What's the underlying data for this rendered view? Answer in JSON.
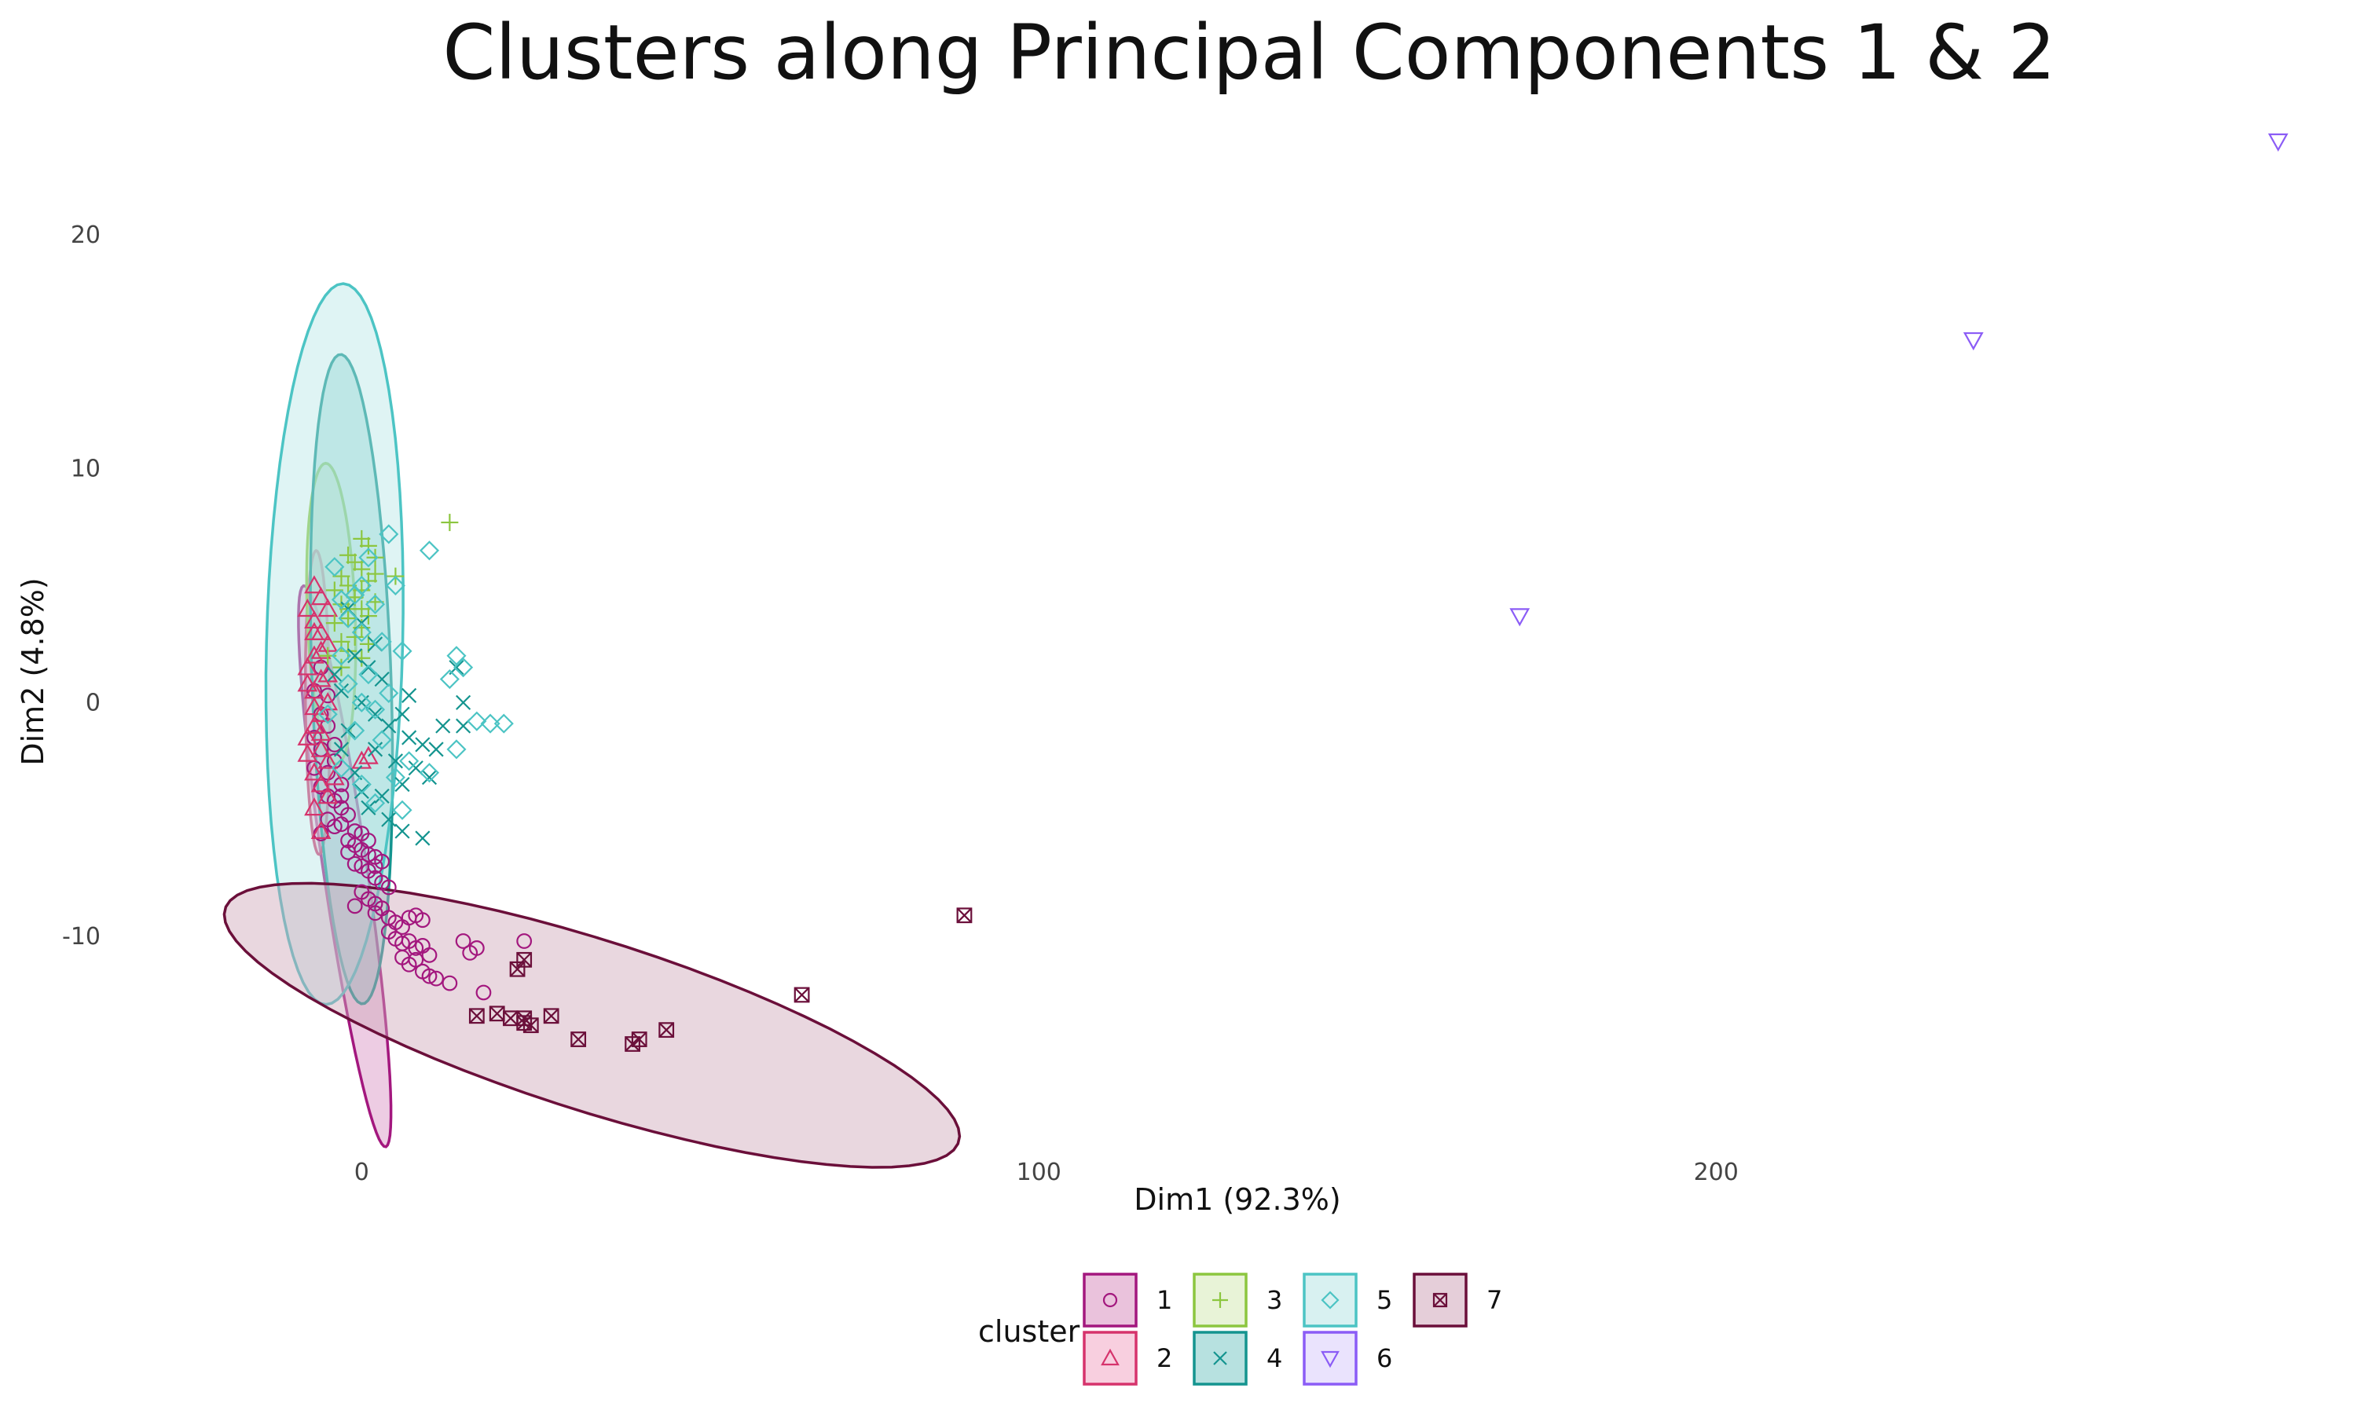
{
  "chart_data": {
    "type": "scatter",
    "title": "Clusters along Principal Components 1 & 2",
    "xlabel": "Dim1 (92.3%)",
    "ylabel": "Dim2 (4.8%)",
    "xlim": [
      -36,
      290
    ],
    "ylim": [
      -19,
      25
    ],
    "x_ticks": [
      {
        "value": 0,
        "label": "0"
      },
      {
        "value": 100,
        "label": "100"
      },
      {
        "value": 200,
        "label": "200"
      }
    ],
    "y_ticks": [
      {
        "value": 20,
        "label": "20"
      },
      {
        "value": 10,
        "label": "10"
      },
      {
        "value": 0,
        "label": "0"
      },
      {
        "value": -10,
        "label": "-10"
      }
    ],
    "grid": false,
    "legend": {
      "title": "cluster",
      "position": "bottom",
      "entries": [
        {
          "label": "1",
          "series": "1"
        },
        {
          "label": "2",
          "series": "2"
        },
        {
          "label": "3",
          "series": "3"
        },
        {
          "label": "4",
          "series": "4"
        },
        {
          "label": "5",
          "series": "5"
        },
        {
          "label": "6",
          "series": "6"
        },
        {
          "label": "7",
          "series": "7"
        }
      ]
    },
    "series": [
      {
        "name": "1",
        "color": "#a3177e",
        "fill": "#d88fc0",
        "shape": "circle",
        "ellipse": {
          "cx": -2.5,
          "cy": -7.0,
          "rx": 13.5,
          "ry": 2.9,
          "angle_deg": -62
        },
        "points": [
          [
            -4,
            -4.2
          ],
          [
            -3,
            -4.5
          ],
          [
            -2,
            -4.8
          ],
          [
            -5,
            -5
          ],
          [
            -4,
            -5.3
          ],
          [
            -3,
            -5.2
          ],
          [
            -1,
            -5.5
          ],
          [
            0,
            -5.6
          ],
          [
            -2,
            -5.9
          ],
          [
            -1,
            -6.1
          ],
          [
            0,
            -6.3
          ],
          [
            1,
            -6.5
          ],
          [
            2,
            -6.6
          ],
          [
            3,
            -6.8
          ],
          [
            -1,
            -6.9
          ],
          [
            0,
            -7.0
          ],
          [
            1,
            -7.2
          ],
          [
            2,
            -7.5
          ],
          [
            3,
            -7.7
          ],
          [
            4,
            -7.9
          ],
          [
            0,
            -8.1
          ],
          [
            1,
            -8.4
          ],
          [
            2,
            -8.6
          ],
          [
            3,
            -8.8
          ],
          [
            -1,
            -8.7
          ],
          [
            2,
            -9.0
          ],
          [
            4,
            -9.2
          ],
          [
            5,
            -9.4
          ],
          [
            6,
            -9.6
          ],
          [
            7,
            -9.2
          ],
          [
            8,
            -9.1
          ],
          [
            9,
            -9.3
          ],
          [
            4,
            -9.8
          ],
          [
            5,
            -10.1
          ],
          [
            6,
            -10.3
          ],
          [
            7,
            -10.2
          ],
          [
            8,
            -10.5
          ],
          [
            9,
            -10.4
          ],
          [
            10,
            -10.8
          ],
          [
            6,
            -10.9
          ],
          [
            7,
            -11.2
          ],
          [
            8,
            -11.0
          ],
          [
            9,
            -11.5
          ],
          [
            10,
            -11.7
          ],
          [
            11,
            -11.8
          ],
          [
            13,
            -12.0
          ],
          [
            15,
            -10.2
          ],
          [
            16,
            -10.7
          ],
          [
            17,
            -10.5
          ],
          [
            24,
            -10.2
          ],
          [
            18,
            -12.4
          ],
          [
            -3,
            -4.0
          ],
          [
            -6,
            -5.6
          ],
          [
            -2,
            -6.4
          ],
          [
            1,
            -5.9
          ],
          [
            2,
            -7.0
          ],
          [
            -5,
            -3.0
          ],
          [
            -6,
            -2.0
          ],
          [
            -7,
            -1.5
          ],
          [
            -5,
            -1.0
          ],
          [
            -4,
            -2.5
          ],
          [
            -6,
            -0.5
          ],
          [
            -7,
            0.5
          ],
          [
            -5,
            0.3
          ],
          [
            -3,
            -3.5
          ],
          [
            -6,
            1.5
          ],
          [
            -7,
            -2.8
          ],
          [
            -4,
            -1.8
          ],
          [
            -5,
            -4.0
          ],
          [
            -6,
            -3.6
          ]
        ]
      },
      {
        "name": "2",
        "color": "#d6336c",
        "fill": "#f2a7c4",
        "shape": "triangle",
        "ellipse": {
          "cx": -6.5,
          "cy": 0.0,
          "rx": 6.5,
          "ry": 1.8,
          "angle_deg": -88
        },
        "points": [
          [
            -7,
            5
          ],
          [
            -6,
            4.5
          ],
          [
            -8,
            4
          ],
          [
            -7,
            3.5
          ],
          [
            -6,
            3
          ],
          [
            -5,
            2.5
          ],
          [
            -7,
            2
          ],
          [
            -8,
            1.5
          ],
          [
            -6,
            1
          ],
          [
            -7,
            0.5
          ],
          [
            -5,
            0
          ],
          [
            -6,
            -0.5
          ],
          [
            -7,
            -1
          ],
          [
            -8,
            -1.5
          ],
          [
            -6,
            -2
          ],
          [
            -5,
            -2.5
          ],
          [
            -7,
            -3
          ],
          [
            -6,
            -3.5
          ],
          [
            -5,
            -4
          ],
          [
            -7,
            -4.5
          ],
          [
            -6,
            -5.5
          ],
          [
            -8,
            -2.2
          ],
          [
            -5,
            1.2
          ],
          [
            -7,
            -0.2
          ],
          [
            -6,
            2.2
          ],
          [
            -4,
            -3.2
          ],
          [
            -8,
            0.8
          ],
          [
            -7,
            3.0
          ],
          [
            -6,
            -1.3
          ],
          [
            -5,
            4.0
          ],
          [
            1,
            -2.3
          ],
          [
            0,
            -2.5
          ]
        ]
      },
      {
        "name": "3",
        "color": "#8cc63f",
        "fill": "#d6eab6",
        "shape": "plus",
        "ellipse": {
          "cx": -4.5,
          "cy": 3.8,
          "rx": 6.5,
          "ry": 3.5,
          "angle_deg": -80
        },
        "points": [
          [
            0,
            7
          ],
          [
            1,
            6.7
          ],
          [
            -2,
            6.3
          ],
          [
            -1,
            6.0
          ],
          [
            0,
            5.7
          ],
          [
            2,
            5.5
          ],
          [
            -3,
            5.4
          ],
          [
            1,
            5.2
          ],
          [
            5,
            5.4
          ],
          [
            -2,
            5.0
          ],
          [
            0,
            4.8
          ],
          [
            -4,
            4.8
          ],
          [
            -1,
            4.5
          ],
          [
            2,
            4.3
          ],
          [
            -3,
            4.2
          ],
          [
            0,
            4.0
          ],
          [
            1,
            3.7
          ],
          [
            -2,
            3.6
          ],
          [
            -4,
            3.4
          ],
          [
            0,
            3.2
          ],
          [
            -1,
            2.8
          ],
          [
            -3,
            2.6
          ],
          [
            1,
            2.5
          ],
          [
            -2,
            2.2
          ],
          [
            0,
            1.9
          ],
          [
            -5,
            2.0
          ],
          [
            -3,
            1.5
          ],
          [
            13,
            7.7
          ],
          [
            2,
            6.2
          ],
          [
            -2,
            4.0
          ]
        ]
      },
      {
        "name": "4",
        "color": "#14948f",
        "fill": "#7cc9c6",
        "shape": "x",
        "ellipse": {
          "cx": -1.5,
          "cy": 1.0,
          "rx": 14.0,
          "ry": 5.8,
          "angle_deg": -82
        },
        "points": [
          [
            -2,
            4
          ],
          [
            0,
            3.4
          ],
          [
            2,
            2.5
          ],
          [
            -1,
            2.0
          ],
          [
            1,
            1.5
          ],
          [
            3,
            1.0
          ],
          [
            -3,
            0.5
          ],
          [
            0,
            0
          ],
          [
            2,
            -0.5
          ],
          [
            4,
            -1.0
          ],
          [
            6,
            -0.5
          ],
          [
            7,
            -1.5
          ],
          [
            9,
            -1.8
          ],
          [
            11,
            -2.0
          ],
          [
            5,
            -2.5
          ],
          [
            8,
            -2.8
          ],
          [
            10,
            -3.2
          ],
          [
            6,
            -3.5
          ],
          [
            3,
            -4.0
          ],
          [
            1,
            -4.5
          ],
          [
            -1,
            -3.0
          ],
          [
            -3,
            -2.0
          ],
          [
            4,
            -5.0
          ],
          [
            6,
            -5.5
          ],
          [
            9,
            -5.8
          ],
          [
            15,
            -1.0
          ],
          [
            15,
            0
          ],
          [
            14,
            1.5
          ],
          [
            -4,
            1.2
          ],
          [
            -2,
            -1.2
          ],
          [
            0,
            -3.8
          ],
          [
            12,
            -1.0
          ],
          [
            2,
            -2.0
          ],
          [
            7,
            0.3
          ]
        ]
      },
      {
        "name": "5",
        "color": "#4cc4c4",
        "fill": "#b8e6e6",
        "shape": "diamond",
        "ellipse": {
          "cx": -4.0,
          "cy": 2.5,
          "rx": 10.0,
          "ry": 15.5,
          "angle_deg": -8
        },
        "points": [
          [
            4,
            7.2
          ],
          [
            10,
            6.5
          ],
          [
            1,
            6.2
          ],
          [
            -4,
            5.8
          ],
          [
            5,
            5.0
          ],
          [
            -1,
            4.6
          ],
          [
            2,
            4.2
          ],
          [
            -2,
            3.6
          ],
          [
            0,
            3.0
          ],
          [
            3,
            2.6
          ],
          [
            6,
            2.2
          ],
          [
            -3,
            2.0
          ],
          [
            14,
            2.0
          ],
          [
            13,
            1.0
          ],
          [
            15,
            1.5
          ],
          [
            1,
            1.2
          ],
          [
            -2,
            0.8
          ],
          [
            4,
            0.4
          ],
          [
            0,
            0.0
          ],
          [
            2,
            -0.3
          ],
          [
            -5,
            -0.5
          ],
          [
            17,
            -0.8
          ],
          [
            19,
            -0.9
          ],
          [
            21,
            -0.9
          ],
          [
            -1,
            -1.2
          ],
          [
            3,
            -1.6
          ],
          [
            14,
            -2.0
          ],
          [
            7,
            -2.5
          ],
          [
            10,
            -3.0
          ],
          [
            5,
            -3.2
          ],
          [
            -3,
            -2.8
          ],
          [
            0,
            -3.5
          ],
          [
            2,
            -4.3
          ],
          [
            6,
            -4.6
          ],
          [
            -3,
            4.4
          ],
          [
            0,
            5.0
          ]
        ]
      },
      {
        "name": "6",
        "color": "#8b5cf6",
        "fill": "#d9ccfb",
        "shape": "triangle-down",
        "ellipse": null,
        "points": [
          [
            171,
            3.7
          ],
          [
            238,
            15.5
          ],
          [
            283,
            24
          ]
        ]
      },
      {
        "name": "7",
        "color": "#6b0f3a",
        "fill": "#cfa6b9",
        "shape": "square-x",
        "ellipse": {
          "cx": 34.0,
          "cy": -13.8,
          "rx": 54.5,
          "ry": 3.8,
          "angle_deg": -5
        },
        "points": [
          [
            89,
            -9.1
          ],
          [
            65,
            -12.5
          ],
          [
            45,
            -14.0
          ],
          [
            41,
            -14.4
          ],
          [
            40,
            -14.6
          ],
          [
            32,
            -14.4
          ],
          [
            28,
            -13.4
          ],
          [
            24,
            -13.7
          ],
          [
            24,
            -13.5
          ],
          [
            22,
            -13.5
          ],
          [
            20,
            -13.3
          ],
          [
            17,
            -13.4
          ],
          [
            24,
            -11.0
          ],
          [
            23,
            -11.4
          ],
          [
            25,
            -13.8
          ]
        ]
      }
    ]
  }
}
